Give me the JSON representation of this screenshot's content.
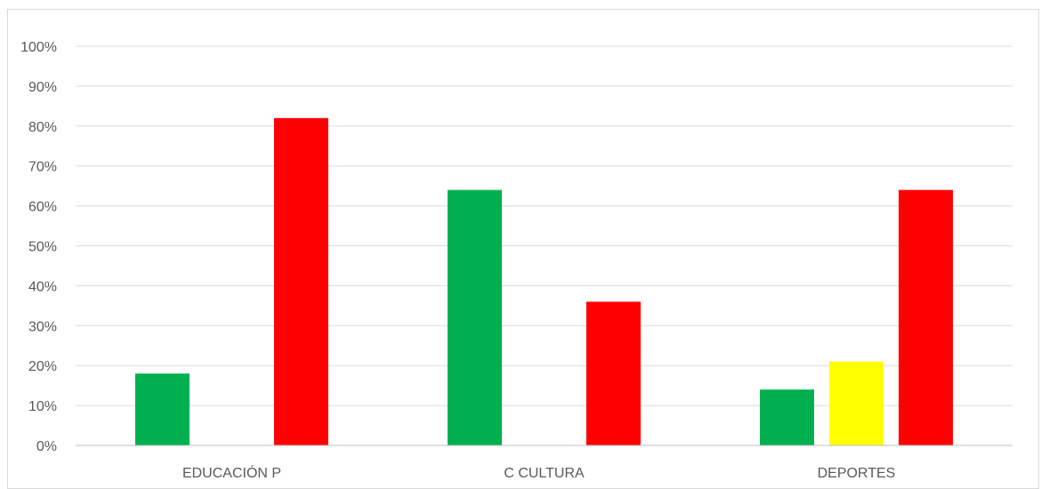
{
  "chart_data": {
    "type": "bar",
    "categories": [
      "EDUCACIÓN P",
      "C CULTURA",
      "DEPORTES"
    ],
    "series": [
      {
        "color": "#00b050",
        "values": [
          0.18,
          0.64,
          0.14
        ]
      },
      {
        "color": "#ffff00",
        "values": [
          0.0,
          0.0,
          0.21
        ]
      },
      {
        "color": "#ff0000",
        "values": [
          0.82,
          0.36,
          0.64
        ]
      }
    ],
    "ylim": [
      0,
      1
    ],
    "yticks": [
      "0%",
      "10%",
      "20%",
      "30%",
      "40%",
      "50%",
      "60%",
      "70%",
      "80%",
      "90%",
      "100%"
    ],
    "grid": true,
    "title": "",
    "xlabel": "",
    "ylabel": ""
  }
}
